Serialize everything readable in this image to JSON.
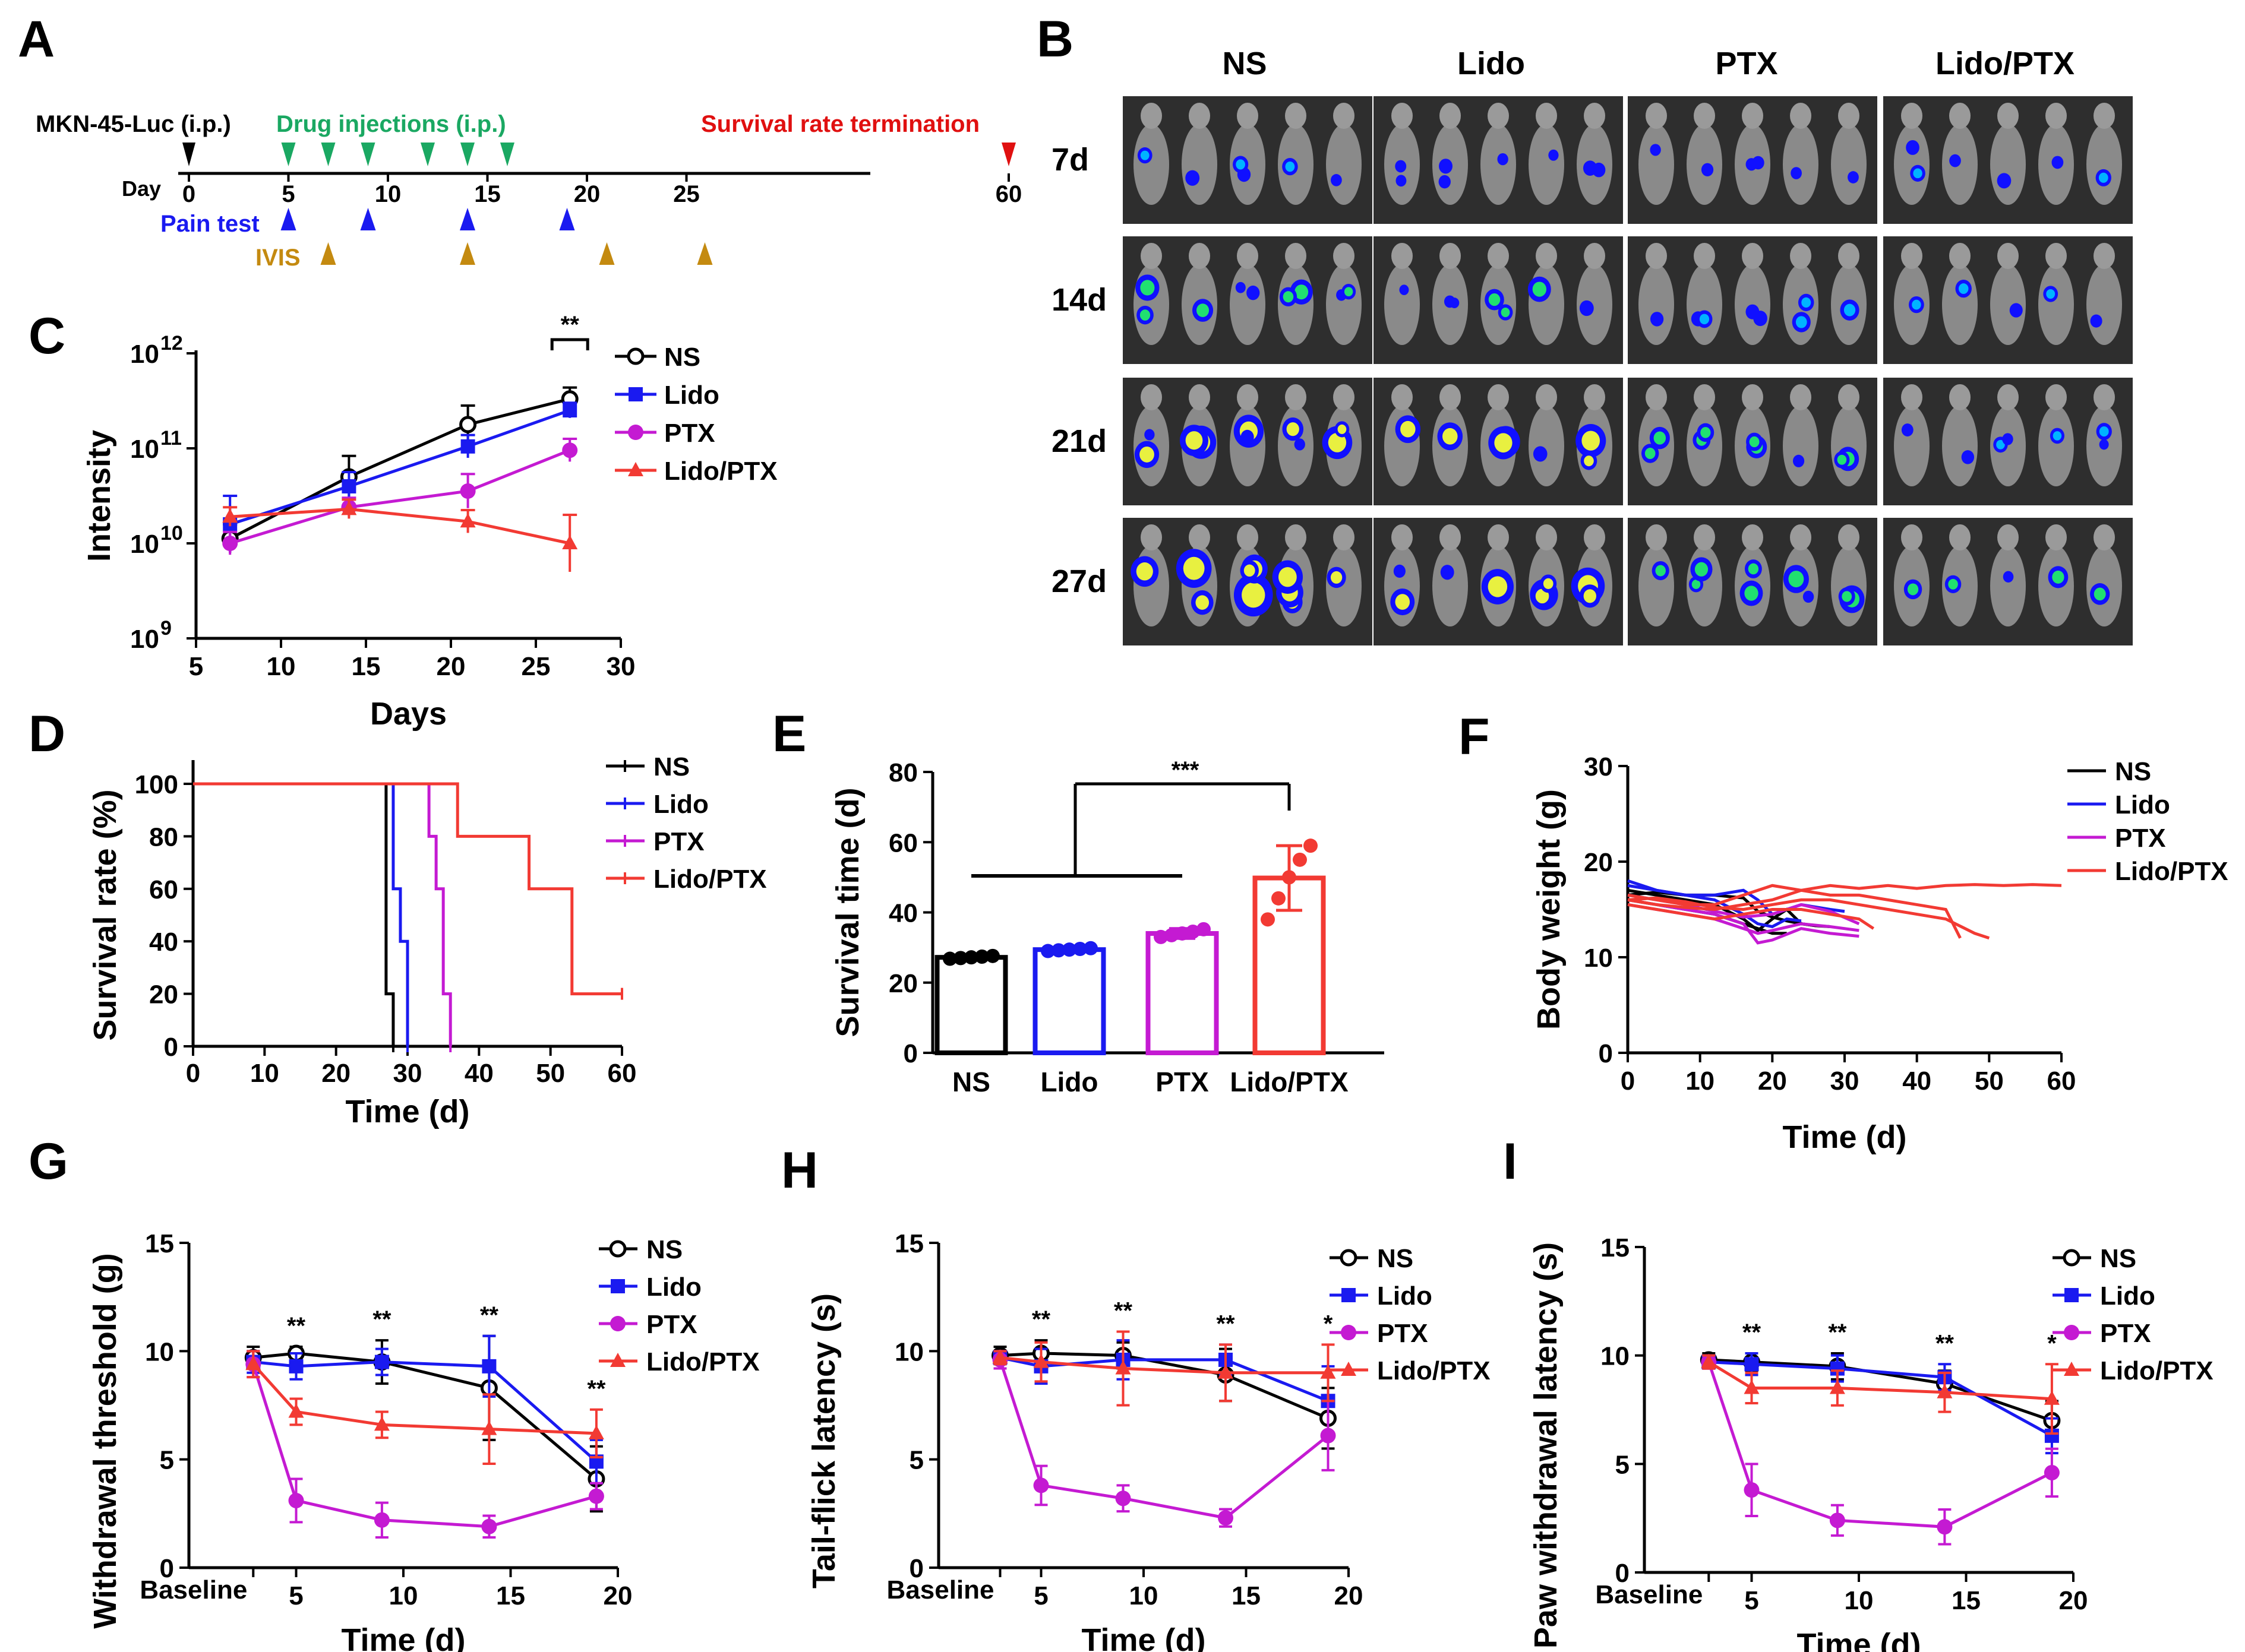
{
  "colors": {
    "NS": "#000000",
    "Lido": "#1a1af0",
    "PTX": "#c41ad2",
    "Lido/PTX": "#f23a33",
    "green": "#1aa862",
    "red": "#e01010",
    "gold": "#c48a10",
    "axis": "#000000"
  },
  "panel_letters": [
    "A",
    "B",
    "C",
    "D",
    "E",
    "F",
    "G",
    "H",
    "I"
  ],
  "timeline": {
    "title": "MKN-45-Luc (i.p.)",
    "drug_label": "Drug injections (i.p.)",
    "end_label": "Survival rate termination",
    "day_label": "Day",
    "ticks": [
      "0",
      "5",
      "10",
      "15",
      "20",
      "25",
      "60"
    ],
    "tick_days": [
      0,
      5,
      10,
      15,
      20,
      25,
      60
    ],
    "drug_days": [
      5,
      7,
      9,
      12,
      14,
      16
    ],
    "pain_label": "Pain test",
    "pain_days": [
      5,
      9,
      14,
      19
    ],
    "ivis_label": "IVIS",
    "ivis_days": [
      7,
      14,
      21,
      27
    ],
    "tumor_day": 0,
    "end_day": 60
  },
  "imaging": {
    "columns": [
      "NS",
      "Lido",
      "PTX",
      "Lido/PTX"
    ],
    "rows": [
      "7d",
      "14d",
      "21d",
      "27d"
    ],
    "mice_per_panel": 5
  },
  "chart_data": [
    {
      "panel": "C",
      "type": "line",
      "xlabel": "Days",
      "ylabel": "Intensity",
      "xlim": [
        5,
        30
      ],
      "ylim": [
        9,
        12
      ],
      "yscale": "log10",
      "xticks": [
        "5",
        "10",
        "15",
        "20",
        "25",
        "30"
      ],
      "yticks": [
        {
          "base": "10",
          "exp": "12"
        },
        {
          "base": "10",
          "exp": "11"
        },
        {
          "base": "10",
          "exp": "10"
        },
        {
          "base": "10",
          "exp": "9"
        }
      ],
      "x": [
        7,
        14,
        21,
        27
      ],
      "series": [
        {
          "name": "NS",
          "log10_values": [
            10.05,
            10.7,
            11.25,
            11.52
          ],
          "err": [
            0.15,
            0.22,
            0.2,
            0.12
          ]
        },
        {
          "name": "Lido",
          "log10_values": [
            10.2,
            10.6,
            11.02,
            11.4
          ],
          "err": [
            0.3,
            0.15,
            0.12,
            0.08
          ]
        },
        {
          "name": "PTX",
          "log10_values": [
            10.0,
            10.38,
            10.55,
            10.98
          ],
          "err": [
            0.12,
            0.1,
            0.18,
            0.12
          ]
        },
        {
          "name": "Lido/PTX",
          "log10_values": [
            10.28,
            10.36,
            10.23,
            10.0
          ],
          "err": [
            0.1,
            0.1,
            0.12,
            0.3
          ]
        }
      ],
      "annotation": "**"
    },
    {
      "panel": "D",
      "type": "line",
      "xlabel": "Time (d)",
      "ylabel": "Survival rate (%)",
      "xlim": [
        0,
        60
      ],
      "ylim": [
        0,
        100
      ],
      "xticks": [
        "0",
        "10",
        "20",
        "30",
        "40",
        "50",
        "60"
      ],
      "yticks": [
        "0",
        "20",
        "40",
        "60",
        "80",
        "100"
      ],
      "series": [
        {
          "name": "NS",
          "x": [
            0,
            27,
            27,
            28,
            28
          ],
          "y": [
            100,
            100,
            20,
            20,
            0
          ]
        },
        {
          "name": "Lido",
          "x": [
            0,
            28,
            28,
            29,
            29,
            30,
            30
          ],
          "y": [
            100,
            100,
            60,
            60,
            40,
            40,
            0
          ]
        },
        {
          "name": "PTX",
          "x": [
            0,
            33,
            33,
            34,
            34,
            35,
            35,
            36,
            36
          ],
          "y": [
            100,
            100,
            80,
            80,
            60,
            60,
            20,
            20,
            0
          ]
        },
        {
          "name": "Lido/PTX",
          "x": [
            0,
            37,
            37,
            47,
            47,
            53,
            53,
            60
          ],
          "y": [
            100,
            100,
            80,
            80,
            60,
            60,
            20,
            20
          ]
        }
      ]
    },
    {
      "panel": "E",
      "type": "bar",
      "categories": [
        "NS",
        "Lido",
        "PTX",
        "Lido/PTX"
      ],
      "values": [
        27.2,
        29.4,
        34.0,
        49.8
      ],
      "err": [
        0.6,
        0.6,
        1.4,
        9.2
      ],
      "points": [
        [
          26.8,
          27,
          27.2,
          27.4,
          27.6
        ],
        [
          29,
          29.2,
          29.4,
          29.6,
          29.8
        ],
        [
          33,
          33.5,
          34,
          34.5,
          35.2
        ],
        [
          38,
          44,
          50,
          55,
          59
        ]
      ],
      "ylabel": "Survival time (d)",
      "ylim": [
        0,
        80
      ],
      "yticks": [
        "0",
        "20",
        "40",
        "60",
        "80"
      ],
      "annotation": "***"
    },
    {
      "panel": "F",
      "type": "line",
      "xlabel": "Time (d)",
      "ylabel": "Body weight (g)",
      "xlim": [
        0,
        60
      ],
      "ylim": [
        0,
        30
      ],
      "xticks": [
        "0",
        "10",
        "20",
        "30",
        "40",
        "50",
        "60"
      ],
      "yticks": [
        "0",
        "10",
        "20",
        "30"
      ],
      "series": [
        {
          "name": "NS",
          "color_key": "NS",
          "x": [
            0,
            4,
            8,
            12,
            16,
            18,
            20,
            22,
            24,
            26,
            28
          ],
          "y": [
            17,
            16.5,
            16,
            15.5,
            14,
            12.8,
            14,
            15,
            13.5,
            13.3,
            13.2
          ]
        },
        {
          "name": "NS",
          "color_key": "NS",
          "x": [
            0,
            4,
            8,
            12,
            16,
            18,
            20,
            22,
            24,
            26
          ],
          "y": [
            16.5,
            16.8,
            16.5,
            16.5,
            16.2,
            14.8,
            14.2,
            13.8,
            13.5,
            13.3
          ]
        },
        {
          "name": "NS",
          "color_key": "NS",
          "x": [
            0,
            4,
            8,
            12,
            16,
            18,
            20,
            22
          ],
          "y": [
            16,
            15.5,
            15,
            14.5,
            13.5,
            13,
            12.5,
            12.5
          ]
        },
        {
          "name": "Lido",
          "color_key": "Lido",
          "x": [
            0,
            4,
            8,
            12,
            16,
            18,
            20,
            24,
            28,
            30
          ],
          "y": [
            18,
            17,
            16.5,
            16.5,
            17,
            16,
            14.5,
            15.5,
            15,
            14.8
          ]
        },
        {
          "name": "Lido",
          "color_key": "Lido",
          "x": [
            0,
            4,
            8,
            12,
            16,
            18,
            20,
            22,
            24
          ],
          "y": [
            17.5,
            17,
            16.5,
            16,
            14.5,
            13.5,
            13.2,
            14,
            13.8
          ]
        },
        {
          "name": "PTX",
          "color_key": "PTX",
          "x": [
            0,
            4,
            8,
            12,
            16,
            18,
            20,
            24,
            28,
            32
          ],
          "y": [
            16,
            15.5,
            15,
            14.5,
            13.5,
            11.5,
            11.8,
            13,
            12.5,
            12.2
          ]
        },
        {
          "name": "PTX",
          "color_key": "PTX",
          "x": [
            0,
            4,
            8,
            12,
            16,
            18,
            20,
            24,
            28,
            32
          ],
          "y": [
            15.5,
            15,
            14.5,
            14,
            13,
            12.5,
            12.8,
            13.5,
            13.2,
            12.8
          ]
        },
        {
          "name": "PTX",
          "color_key": "PTX",
          "x": [
            0,
            4,
            8,
            12,
            16,
            20,
            24,
            28,
            32
          ],
          "y": [
            16.5,
            16,
            15.5,
            14.8,
            14.2,
            14.5,
            15.5,
            14.8,
            13.5
          ]
        },
        {
          "name": "Lido/PTX",
          "color_key": "Lido/PTX",
          "x": [
            0,
            4,
            8,
            12,
            16,
            20,
            24,
            28,
            32,
            36,
            40,
            44,
            48,
            52,
            56,
            60
          ],
          "y": [
            16,
            15.5,
            15.2,
            15,
            15.5,
            16,
            17,
            17.5,
            17.2,
            17.5,
            17.2,
            17.5,
            17.6,
            17.5,
            17.6,
            17.5
          ]
        },
        {
          "name": "Lido/PTX",
          "color_key": "Lido/PTX",
          "x": [
            0,
            4,
            8,
            12,
            16,
            20,
            24,
            28,
            32,
            36,
            40,
            44,
            46
          ],
          "y": [
            16.5,
            16,
            15.5,
            15.5,
            16.5,
            17.5,
            17,
            16.5,
            16.5,
            16,
            15.5,
            15,
            12
          ]
        },
        {
          "name": "Lido/PTX",
          "color_key": "Lido/PTX",
          "x": [
            0,
            4,
            8,
            12,
            16,
            20,
            24,
            28,
            32,
            36,
            40,
            44,
            48,
            50
          ],
          "y": [
            16,
            16.2,
            15.8,
            15.2,
            15,
            15.5,
            16,
            16,
            15.5,
            15,
            14.5,
            14,
            12.5,
            12
          ]
        },
        {
          "name": "Lido/PTX",
          "color_key": "Lido/PTX",
          "x": [
            0,
            4,
            8,
            12,
            16,
            20,
            24,
            28,
            32,
            34
          ],
          "y": [
            15.5,
            15,
            14.5,
            14,
            14.5,
            15,
            15,
            14.5,
            14,
            13
          ]
        }
      ]
    },
    {
      "panel": "G",
      "type": "line",
      "xlabel": "Time (d)",
      "ylabel": "Withdrawal threshold (g)",
      "xlim": [
        0,
        20
      ],
      "ylim": [
        0,
        15
      ],
      "xticks": [
        "Baseline",
        "5",
        "10",
        "15",
        "20"
      ],
      "xtick_vals": [
        3,
        5,
        10,
        15,
        20
      ],
      "yticks": [
        "0",
        "5",
        "10",
        "15"
      ],
      "x": [
        3,
        5,
        9,
        14,
        19
      ],
      "series": [
        {
          "name": "NS",
          "values": [
            9.7,
            9.9,
            9.5,
            8.3,
            4.1
          ],
          "err": [
            0.5,
            0.3,
            1.0,
            2.4,
            1.5
          ]
        },
        {
          "name": "Lido",
          "values": [
            9.5,
            9.3,
            9.5,
            9.3,
            4.9
          ],
          "err": [
            0.5,
            0.6,
            0.6,
            1.4,
            1.0
          ]
        },
        {
          "name": "PTX",
          "values": [
            9.4,
            3.1,
            2.2,
            1.9,
            3.3
          ],
          "err": [
            0.6,
            1.0,
            0.8,
            0.5,
            0.6
          ]
        },
        {
          "name": "Lido/PTX",
          "values": [
            9.4,
            7.2,
            6.6,
            6.4,
            6.2
          ],
          "err": [
            0.6,
            0.6,
            0.6,
            1.6,
            1.1
          ]
        }
      ],
      "sig_labels": [
        "**",
        "**",
        "**",
        "**"
      ],
      "sig_x": [
        5,
        9,
        14,
        19
      ]
    },
    {
      "panel": "H",
      "type": "line",
      "xlabel": "Time (d)",
      "ylabel": "Tail-flick latency (s)",
      "xlim": [
        0,
        20
      ],
      "ylim": [
        0,
        15
      ],
      "xticks": [
        "Baseline",
        "5",
        "10",
        "15",
        "20"
      ],
      "xtick_vals": [
        3,
        5,
        10,
        15,
        20
      ],
      "yticks": [
        "0",
        "5",
        "10",
        "15"
      ],
      "x": [
        3,
        5,
        9,
        14,
        19
      ],
      "series": [
        {
          "name": "NS",
          "values": [
            9.8,
            9.9,
            9.8,
            8.9,
            6.9
          ],
          "err": [
            0.4,
            0.6,
            0.6,
            1.2,
            1.4
          ]
        },
        {
          "name": "Lido",
          "values": [
            9.7,
            9.3,
            9.6,
            9.6,
            7.7
          ],
          "err": [
            0.3,
            0.8,
            0.9,
            0.7,
            1.6
          ]
        },
        {
          "name": "PTX",
          "values": [
            9.6,
            3.8,
            3.2,
            2.3,
            6.1
          ],
          "err": [
            0.4,
            0.9,
            0.6,
            0.4,
            1.6
          ]
        },
        {
          "name": "Lido/PTX",
          "values": [
            9.7,
            9.5,
            9.2,
            9.0,
            9.0
          ],
          "err": [
            0.3,
            0.9,
            1.7,
            1.3,
            1.3
          ]
        }
      ],
      "sig_labels": [
        "**",
        "**",
        "**",
        "*"
      ],
      "sig_x": [
        5,
        9,
        14,
        19
      ]
    },
    {
      "panel": "I",
      "type": "line",
      "xlabel": "Time (d)",
      "ylabel": "Paw withdrawal latency (s)",
      "xlim": [
        0,
        20
      ],
      "ylim": [
        0,
        15
      ],
      "xticks": [
        "Baseline",
        "5",
        "10",
        "15",
        "20"
      ],
      "xtick_vals": [
        3,
        5,
        10,
        15,
        20
      ],
      "yticks": [
        "0",
        "5",
        "10",
        "15"
      ],
      "x": [
        3,
        5,
        9,
        14,
        19
      ],
      "series": [
        {
          "name": "NS",
          "values": [
            9.8,
            9.7,
            9.5,
            8.7,
            7.0
          ],
          "err": [
            0.3,
            0.4,
            0.6,
            0.6,
            0.9
          ]
        },
        {
          "name": "Lido",
          "values": [
            9.7,
            9.6,
            9.4,
            9.0,
            6.3
          ],
          "err": [
            0.3,
            0.5,
            0.6,
            0.6,
            0.8
          ]
        },
        {
          "name": "PTX",
          "values": [
            9.7,
            3.8,
            2.4,
            2.1,
            4.6
          ],
          "err": [
            0.3,
            1.2,
            0.7,
            0.8,
            1.1
          ]
        },
        {
          "name": "Lido/PTX",
          "values": [
            9.7,
            8.5,
            8.5,
            8.3,
            8.0
          ],
          "err": [
            0.3,
            0.7,
            0.8,
            0.9,
            1.6
          ]
        }
      ],
      "sig_labels": [
        "**",
        "**",
        "**",
        "*"
      ],
      "sig_x": [
        5,
        9,
        14,
        19
      ]
    }
  ]
}
